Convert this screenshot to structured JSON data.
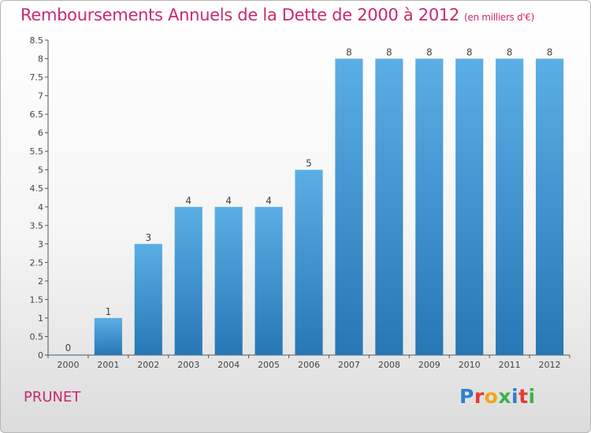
{
  "title": "Remboursements Annuels de la Dette de 2000 à 2012",
  "unit": "(en milliers d'€)",
  "commune": "PRUNET",
  "logo": {
    "letters": [
      {
        "ch": "P",
        "color": "#2e7fd0"
      },
      {
        "ch": "r",
        "color": "#e63a33"
      },
      {
        "ch": "o",
        "color": "#f2a516"
      },
      {
        "ch": "x",
        "color": "#3db34a"
      },
      {
        "ch": "i",
        "color": "#2e7fd0"
      },
      {
        "ch": "t",
        "color": "#e63a33"
      },
      {
        "ch": "i",
        "color": "#3db34a"
      }
    ]
  },
  "colors": {
    "title": "#c8296e",
    "bar_top": "#5caee6",
    "bar_bottom": "#2777b4",
    "axis": "#555555"
  },
  "chart_data": {
    "type": "bar",
    "categories": [
      "2000",
      "2001",
      "2002",
      "2003",
      "2004",
      "2005",
      "2006",
      "2007",
      "2008",
      "2009",
      "2010",
      "2011",
      "2012"
    ],
    "values": [
      0,
      1,
      3,
      4,
      4,
      4,
      5,
      8,
      8,
      8,
      8,
      8,
      8
    ],
    "value_labels": [
      "0",
      "1",
      "3",
      "4",
      "4",
      "4",
      "5",
      "8",
      "8",
      "8",
      "8",
      "8",
      "8"
    ],
    "y_ticks": [
      "0",
      "0.5",
      "1",
      "1.5",
      "2",
      "2.5",
      "3",
      "3.5",
      "4",
      "4.5",
      "5",
      "5.5",
      "6",
      "6.5",
      "7",
      "7.5",
      "8",
      "8.5"
    ],
    "ylim": [
      0,
      8.5
    ],
    "grid": false,
    "legend": "none"
  }
}
